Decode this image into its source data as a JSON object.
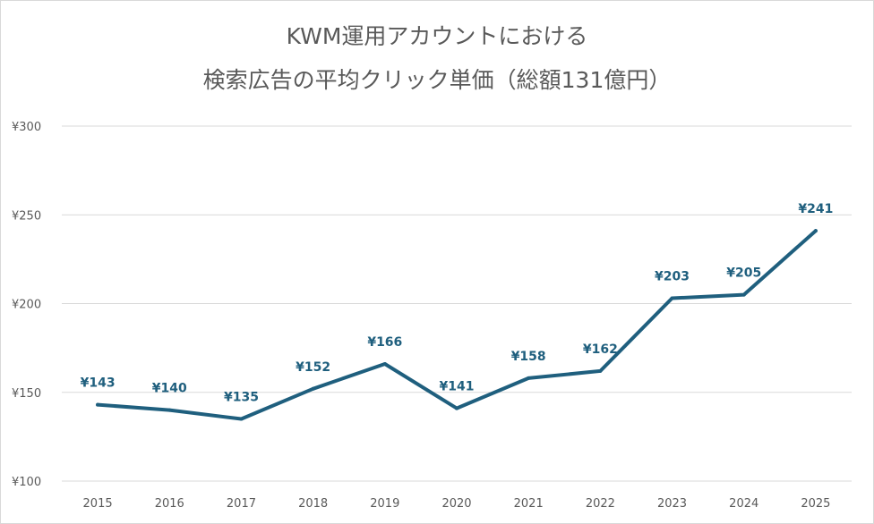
{
  "chart_title": {
    "line1": "KWM運用アカウントにおける",
    "line2": "検索広告の平均クリック単価（総額131億円）"
  },
  "chart_data": {
    "type": "line",
    "title": "KWM運用アカウントにおける 検索広告の平均クリック単価（総額131億円）",
    "categories": [
      "2015",
      "2016",
      "2017",
      "2018",
      "2019",
      "2020",
      "2021",
      "2022",
      "2023",
      "2024",
      "2025"
    ],
    "series": [
      {
        "values": [
          143,
          140,
          135,
          152,
          166,
          141,
          158,
          162,
          203,
          205,
          241
        ],
        "data_labels": [
          "¥143",
          "¥140",
          "¥135",
          "¥152",
          "¥166",
          "¥141",
          "¥158",
          "¥162",
          "¥203",
          "¥205",
          "¥241"
        ]
      }
    ],
    "y_ticks": [
      100,
      150,
      200,
      250,
      300
    ],
    "y_tick_labels": [
      "¥100",
      "¥150",
      "¥200",
      "¥250",
      "¥300"
    ],
    "ylim": [
      100,
      300
    ],
    "xlabel": "",
    "ylabel": "",
    "grid": "horizontal",
    "legend": "none",
    "colors": {
      "line": "#1f5f7e",
      "data_label": "#1f5f7e",
      "grid": "#d9d9d9",
      "tick_label": "#595959",
      "title": "#595959"
    }
  }
}
